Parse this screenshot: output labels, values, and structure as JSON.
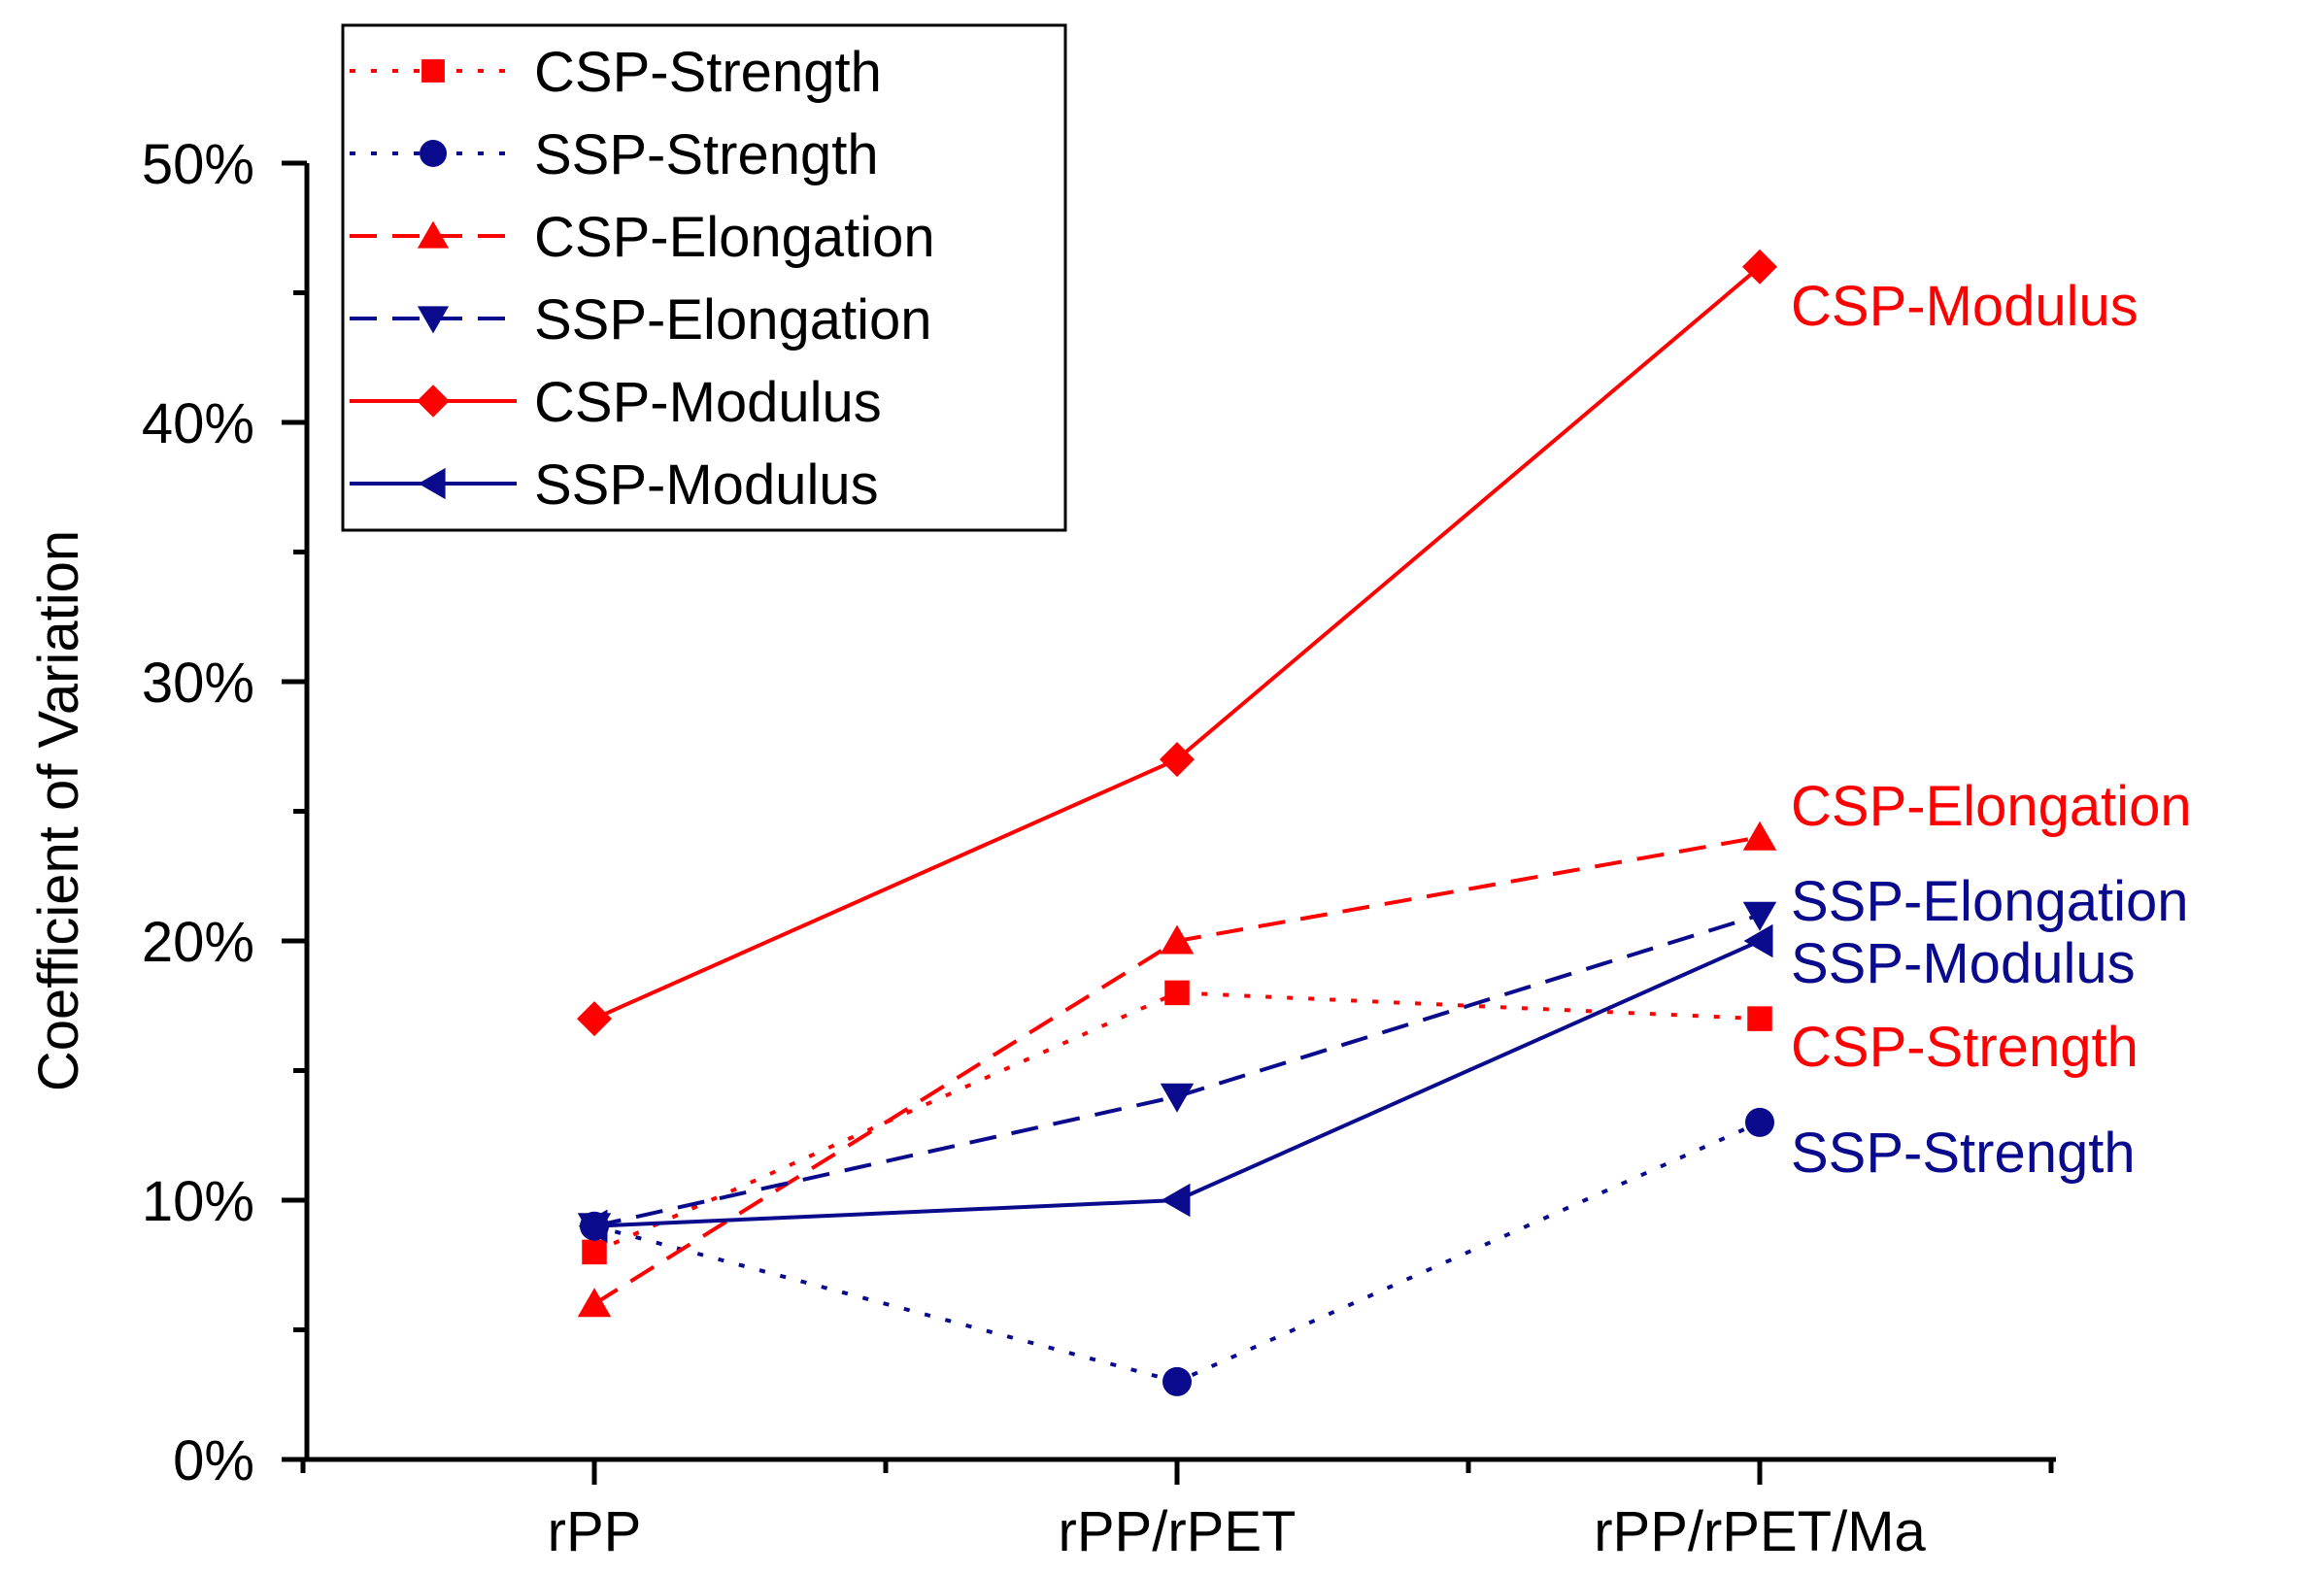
{
  "chart_data": {
    "type": "line",
    "title": "",
    "xlabel": "",
    "ylabel": "Coefficient of Variation",
    "categories": [
      "rPP",
      "rPP/rPET",
      "rPP/rPET/Ma"
    ],
    "ylim": [
      0,
      50
    ],
    "ytick_values": [
      0,
      10,
      20,
      30,
      40,
      50
    ],
    "ytick_labels": [
      "0%",
      "10%",
      "20%",
      "30%",
      "40%",
      "50%"
    ],
    "grid": false,
    "legend_position": "top-left",
    "series": [
      {
        "name": "CSP-Strength",
        "values": [
          8,
          18,
          17
        ],
        "color": "#ff0000",
        "dash": "dotted",
        "marker": "square",
        "end_label": "CSP-Strength"
      },
      {
        "name": "SSP-Strength",
        "values": [
          9,
          3,
          13
        ],
        "color": "#0a0a8c",
        "dash": "dotted",
        "marker": "circle",
        "end_label": "SSP-Strength"
      },
      {
        "name": "CSP-Elongation",
        "values": [
          6,
          20,
          24
        ],
        "color": "#ff0000",
        "dash": "dashed",
        "marker": "triangle-up",
        "end_label": "CSP-Elongation"
      },
      {
        "name": "SSP-Elongation",
        "values": [
          9,
          14,
          21
        ],
        "color": "#0a0a8c",
        "dash": "dashed",
        "marker": "triangle-down",
        "end_label": "SSP-Elongation"
      },
      {
        "name": "CSP-Modulus",
        "values": [
          17,
          27,
          46
        ],
        "color": "#ff0000",
        "dash": "solid",
        "marker": "diamond",
        "end_label": "CSP-Modulus"
      },
      {
        "name": "SSP-Modulus",
        "values": [
          9,
          10,
          20
        ],
        "color": "#0a0a8c",
        "dash": "solid",
        "marker": "triangle-left",
        "end_label": "SSP-Modulus"
      }
    ]
  }
}
